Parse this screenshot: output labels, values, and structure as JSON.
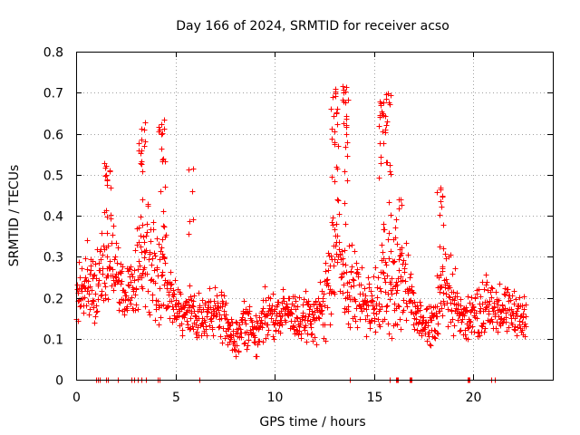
{
  "chart_data": {
    "type": "scatter",
    "title": "Day 166 of 2024, SRMTID for receiver acso",
    "xlabel": "GPS time / hours",
    "ylabel": "SRMTID / TECUs",
    "xlim": [
      0,
      24
    ],
    "ylim": [
      0,
      0.8
    ],
    "xticks": [
      0,
      5,
      10,
      15,
      20
    ],
    "xtick_labels": [
      "0",
      "5",
      "10",
      "15",
      "20"
    ],
    "yticks": [
      0,
      0.1,
      0.2,
      0.3,
      0.4,
      0.5,
      0.6,
      0.7,
      0.8
    ],
    "ytick_labels": [
      "0",
      "0.1",
      "0.2",
      "0.3",
      "0.4",
      "0.5",
      "0.6",
      "0.7",
      "0.8"
    ],
    "grid": true,
    "marker": "+",
    "color": "#ff0000",
    "envelope": {
      "x": [
        0,
        0.5,
        1.0,
        1.5,
        2.0,
        2.5,
        3.0,
        3.5,
        4.0,
        4.5,
        5.0,
        5.5,
        6.0,
        6.5,
        7.0,
        7.5,
        8.0,
        8.5,
        9.0,
        9.5,
        10.0,
        10.5,
        11.0,
        11.5,
        12.0,
        12.5,
        13.0,
        13.5,
        14.0,
        14.5,
        15.0,
        15.5,
        16.0,
        16.5,
        17.0,
        17.5,
        18.0,
        18.5,
        19.0,
        19.5,
        20.0,
        20.5,
        21.0,
        21.5,
        22.0,
        22.5
      ],
      "center": [
        0.2,
        0.24,
        0.22,
        0.3,
        0.26,
        0.2,
        0.25,
        0.3,
        0.27,
        0.24,
        0.19,
        0.17,
        0.16,
        0.15,
        0.17,
        0.14,
        0.1,
        0.14,
        0.12,
        0.16,
        0.15,
        0.17,
        0.16,
        0.15,
        0.14,
        0.2,
        0.3,
        0.28,
        0.22,
        0.19,
        0.18,
        0.25,
        0.22,
        0.25,
        0.18,
        0.14,
        0.13,
        0.24,
        0.2,
        0.14,
        0.16,
        0.18,
        0.18,
        0.17,
        0.16,
        0.15
      ],
      "spread": [
        0.06,
        0.08,
        0.08,
        0.1,
        0.08,
        0.06,
        0.09,
        0.12,
        0.12,
        0.09,
        0.05,
        0.05,
        0.06,
        0.05,
        0.05,
        0.05,
        0.04,
        0.05,
        0.05,
        0.05,
        0.05,
        0.05,
        0.05,
        0.05,
        0.05,
        0.08,
        0.13,
        0.12,
        0.09,
        0.06,
        0.07,
        0.12,
        0.11,
        0.09,
        0.05,
        0.04,
        0.05,
        0.09,
        0.07,
        0.04,
        0.05,
        0.06,
        0.06,
        0.05,
        0.05,
        0.04
      ]
    },
    "peaks": [
      {
        "x": 1.6,
        "y": 0.53,
        "count": 14
      },
      {
        "x": 3.3,
        "y": 0.63,
        "count": 18
      },
      {
        "x": 4.3,
        "y": 0.64,
        "count": 20
      },
      {
        "x": 5.8,
        "y": 0.54,
        "count": 6
      },
      {
        "x": 13.0,
        "y": 0.71,
        "count": 22
      },
      {
        "x": 13.6,
        "y": 0.72,
        "count": 22
      },
      {
        "x": 15.4,
        "y": 0.68,
        "count": 20
      },
      {
        "x": 15.7,
        "y": 0.7,
        "count": 18
      },
      {
        "x": 16.2,
        "y": 0.44,
        "count": 10
      },
      {
        "x": 18.3,
        "y": 0.47,
        "count": 12
      }
    ],
    "zero_points_x": [
      1.0,
      1.1,
      1.2,
      1.5,
      1.6,
      2.1,
      2.8,
      2.9,
      3.1,
      3.3,
      3.5,
      4.1,
      4.2,
      6.2,
      13.8,
      15.8,
      16.1,
      16.15,
      16.2,
      16.8,
      16.85,
      16.9,
      19.7,
      19.75,
      19.8,
      20.9,
      21.1
    ]
  }
}
